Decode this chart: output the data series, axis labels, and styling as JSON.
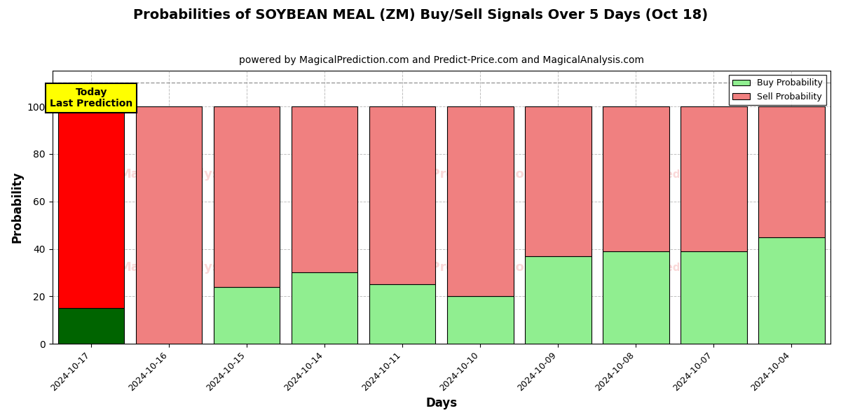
{
  "title": "Probabilities of SOYBEAN MEAL (ZM) Buy/Sell Signals Over 5 Days (Oct 18)",
  "subtitle": "powered by MagicalPrediction.com and Predict-Price.com and MagicalAnalysis.com",
  "xlabel": "Days",
  "ylabel": "Probability",
  "categories": [
    "2024-10-17",
    "2024-10-16",
    "2024-10-15",
    "2024-10-14",
    "2024-10-11",
    "2024-10-10",
    "2024-10-09",
    "2024-10-08",
    "2024-10-07",
    "2024-10-04"
  ],
  "buy_values": [
    15,
    0,
    24,
    30,
    25,
    20,
    37,
    39,
    39,
    45
  ],
  "sell_values": [
    85,
    100,
    76,
    70,
    75,
    80,
    63,
    61,
    61,
    55
  ],
  "buy_colors": [
    "#006400",
    "#90EE90",
    "#90EE90",
    "#90EE90",
    "#90EE90",
    "#90EE90",
    "#90EE90",
    "#90EE90",
    "#90EE90",
    "#90EE90"
  ],
  "sell_colors": [
    "#FF0000",
    "#F08080",
    "#F08080",
    "#F08080",
    "#F08080",
    "#F08080",
    "#F08080",
    "#F08080",
    "#F08080",
    "#F08080"
  ],
  "today_label": "Today\nLast Prediction",
  "today_bg": "#FFFF00",
  "today_text_color": "#000000",
  "dashed_line_y": 110,
  "ylim": [
    0,
    115
  ],
  "yticks": [
    0,
    20,
    40,
    60,
    80,
    100
  ],
  "legend_buy_color": "#90EE90",
  "legend_sell_color": "#F08080",
  "watermark_color": "#F08080",
  "fig_width": 12,
  "fig_height": 6,
  "title_fontsize": 14,
  "subtitle_fontsize": 10,
  "bar_edgecolor": "#000000",
  "bar_linewidth": 0.8,
  "grid_color": "#808080",
  "grid_linestyle": "--",
  "grid_alpha": 0.5,
  "bar_width": 0.85
}
